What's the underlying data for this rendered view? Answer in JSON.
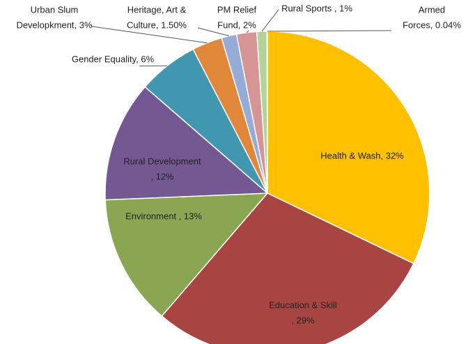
{
  "chart_data": {
    "type": "pie",
    "categories": [
      [
        "Health & Wash, 32%"
      ],
      [
        "Education & Skill",
        ", 29%"
      ],
      [
        "Environment , 13%"
      ],
      [
        "Rural Development",
        ", 12%"
      ],
      [
        "Gender Equality, 6%"
      ],
      [
        "Urban Slum",
        "Developkment, 3%"
      ],
      [
        "Heritage, Art &",
        "Culture, 1.50%"
      ],
      [
        "PM Relief",
        "Fund, 2%"
      ],
      [
        "Rural Sports , 1%"
      ],
      [
        "Armed",
        "Forces, 0.04%"
      ]
    ],
    "values": [
      32,
      29,
      13,
      12,
      6,
      3,
      1.5,
      2,
      1,
      0.04
    ],
    "colors": [
      "#FFC000",
      "#A84543",
      "#8BA652",
      "#735892",
      "#4297B0",
      "#E0873B",
      "#95ADD6",
      "#D69595",
      "#B3D39A",
      "#7FA0C8"
    ]
  }
}
